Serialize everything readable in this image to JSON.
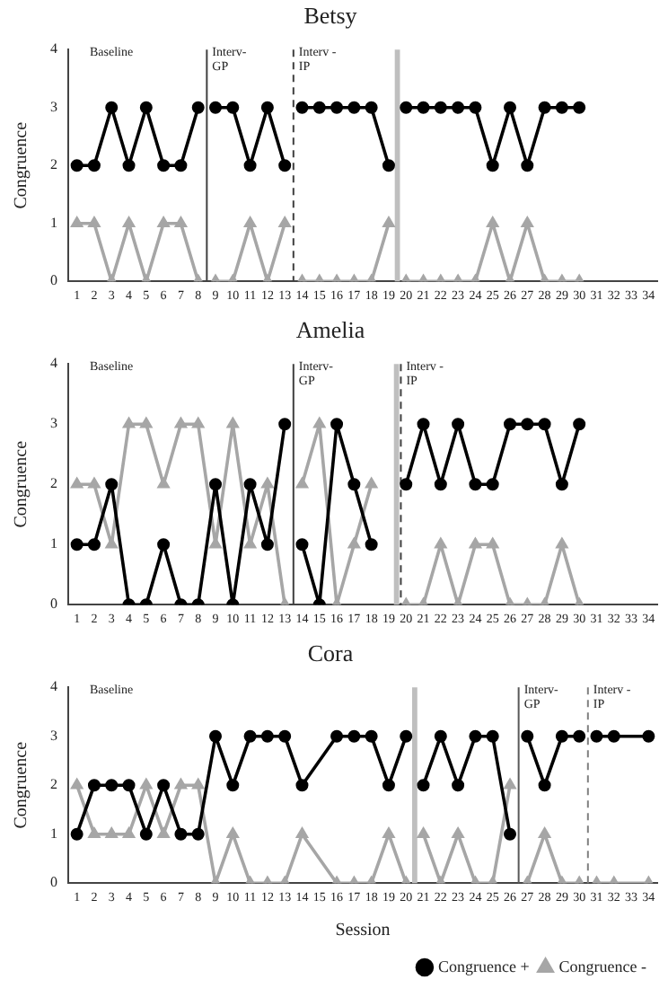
{
  "chart_data": [
    {
      "type": "line",
      "title": "Betsy",
      "ylabel": "Congruence",
      "x": [
        1,
        2,
        3,
        4,
        5,
        6,
        7,
        8,
        9,
        10,
        11,
        12,
        13,
        14,
        15,
        16,
        17,
        18,
        19,
        20,
        21,
        22,
        23,
        24,
        25,
        26,
        27,
        28,
        29,
        30
      ],
      "xlim": [
        0.5,
        34.5
      ],
      "xticks": [
        1,
        2,
        3,
        4,
        5,
        6,
        7,
        8,
        9,
        10,
        11,
        12,
        13,
        14,
        15,
        16,
        17,
        18,
        19,
        20,
        21,
        22,
        23,
        24,
        25,
        26,
        27,
        28,
        29,
        30,
        31,
        32,
        33,
        34
      ],
      "ylim": [
        0,
        4
      ],
      "yticks": [
        0,
        1,
        2,
        3,
        4
      ],
      "grid": false,
      "legend": false,
      "series": [
        {
          "color": "#000000",
          "marker": "circle",
          "values": [
            2,
            2,
            3,
            2,
            3,
            2,
            2,
            3,
            3,
            3,
            2,
            3,
            2,
            3,
            3,
            3,
            3,
            3,
            2,
            3,
            3,
            3,
            3,
            3,
            2,
            3,
            2,
            3,
            3,
            3
          ]
        },
        {
          "color": "#a6a6a6",
          "marker": "triangle",
          "values": [
            1,
            1,
            0,
            1,
            0,
            1,
            1,
            0,
            0,
            0,
            1,
            0,
            1,
            0,
            0,
            0,
            0,
            0,
            1,
            0,
            0,
            0,
            0,
            0,
            1,
            0,
            1,
            0,
            0,
            0
          ]
        }
      ],
      "ref_lines": [
        {
          "axis": "x",
          "value": 8.5,
          "color": "#404040",
          "line_style": "solid"
        },
        {
          "axis": "x",
          "value": 13.5,
          "color": "#404040",
          "line_style": "dashed"
        }
      ],
      "bands": [
        {
          "axis": "x",
          "from": 19.35,
          "to": 19.65,
          "color": "#bfbfbf"
        }
      ],
      "annotations": [
        "Baseline",
        "Interv-\nGP",
        "Interv -\nIP"
      ]
    },
    {
      "type": "line",
      "title": "Amelia",
      "ylabel": "Congruence",
      "x": [
        1,
        2,
        3,
        4,
        5,
        6,
        7,
        8,
        9,
        10,
        11,
        12,
        13,
        14,
        15,
        16,
        17,
        18,
        19,
        20,
        21,
        22,
        23,
        24,
        25,
        26,
        27,
        28,
        29,
        30
      ],
      "xlim": [
        0.5,
        34.5
      ],
      "xticks": [
        1,
        2,
        3,
        4,
        5,
        6,
        7,
        8,
        9,
        10,
        11,
        12,
        13,
        14,
        15,
        16,
        17,
        18,
        19,
        20,
        21,
        22,
        23,
        24,
        25,
        26,
        27,
        28,
        29,
        30,
        31,
        32,
        33,
        34
      ],
      "ylim": [
        0,
        4
      ],
      "yticks": [
        0,
        1,
        2,
        3,
        4
      ],
      "grid": false,
      "legend": false,
      "series": [
        {
          "color": "#000000",
          "marker": "circle",
          "values": [
            1,
            1,
            2,
            0,
            0,
            1,
            0,
            0,
            2,
            0,
            2,
            1,
            3,
            1,
            0,
            3,
            2,
            1,
            null,
            2,
            3,
            2,
            3,
            2,
            2,
            3,
            3,
            3,
            2,
            3
          ]
        },
        {
          "color": "#a6a6a6",
          "marker": "triangle",
          "values": [
            2,
            2,
            1,
            3,
            3,
            2,
            3,
            3,
            1,
            3,
            1,
            2,
            0,
            2,
            3,
            0,
            1,
            2,
            null,
            0,
            0,
            1,
            0,
            1,
            1,
            0,
            0,
            0,
            1,
            0
          ]
        }
      ],
      "ref_lines": [
        {
          "axis": "x",
          "value": 13.5,
          "color": "#404040",
          "line_style": "solid"
        },
        {
          "axis": "x",
          "value": 19.7,
          "color": "#404040",
          "line_style": "dashed"
        }
      ],
      "bands": [
        {
          "axis": "x",
          "from": 19.3,
          "to": 19.6,
          "color": "#bfbfbf"
        }
      ],
      "annotations": [
        "Baseline",
        "Interv-\nGP",
        "Interv -\nIP"
      ]
    },
    {
      "type": "line",
      "title": "Cora",
      "xlabel": "Session",
      "ylabel": "Congruence",
      "x": [
        1,
        2,
        3,
        4,
        5,
        6,
        7,
        8,
        9,
        10,
        11,
        12,
        13,
        14,
        15,
        16,
        17,
        18,
        19,
        20,
        21,
        22,
        23,
        24,
        25,
        26,
        27,
        28,
        29,
        30,
        31,
        32,
        33,
        34
      ],
      "xlim": [
        0.5,
        34.5
      ],
      "xticks": [
        1,
        2,
        3,
        4,
        5,
        6,
        7,
        8,
        9,
        10,
        11,
        12,
        13,
        14,
        15,
        16,
        17,
        18,
        19,
        20,
        21,
        22,
        23,
        24,
        25,
        26,
        27,
        28,
        29,
        30,
        31,
        32,
        33,
        34
      ],
      "ylim": [
        0,
        4
      ],
      "yticks": [
        0,
        1,
        2,
        3,
        4
      ],
      "grid": false,
      "legend": "bottom right",
      "series": [
        {
          "name": "Congruence +",
          "color": "#000000",
          "marker": "circle",
          "values": [
            1,
            2,
            2,
            2,
            1,
            2,
            1,
            1,
            3,
            2,
            3,
            3,
            3,
            2,
            null,
            3,
            3,
            3,
            2,
            3,
            2,
            3,
            2,
            3,
            3,
            1,
            3,
            2,
            3,
            3,
            3,
            3,
            null,
            3
          ]
        },
        {
          "name": "Congruence -",
          "color": "#a6a6a6",
          "marker": "triangle",
          "values": [
            2,
            1,
            1,
            1,
            2,
            1,
            2,
            2,
            0,
            1,
            0,
            0,
            0,
            1,
            null,
            0,
            0,
            0,
            1,
            0,
            1,
            0,
            1,
            0,
            0,
            2,
            0,
            1,
            0,
            0,
            0,
            0,
            null,
            0
          ]
        }
      ],
      "ref_lines": [
        {
          "axis": "x",
          "value": 26.5,
          "color": "#595959",
          "line_style": "solid"
        },
        {
          "axis": "x",
          "value": 30.5,
          "color": "#808080",
          "line_style": "dashed"
        }
      ],
      "bands": [
        {
          "axis": "x",
          "from": 20.35,
          "to": 20.65,
          "color": "#bfbfbf"
        }
      ],
      "annotations": [
        "Baseline",
        "Interv-\nGP",
        "Interv -\nIP"
      ]
    }
  ]
}
